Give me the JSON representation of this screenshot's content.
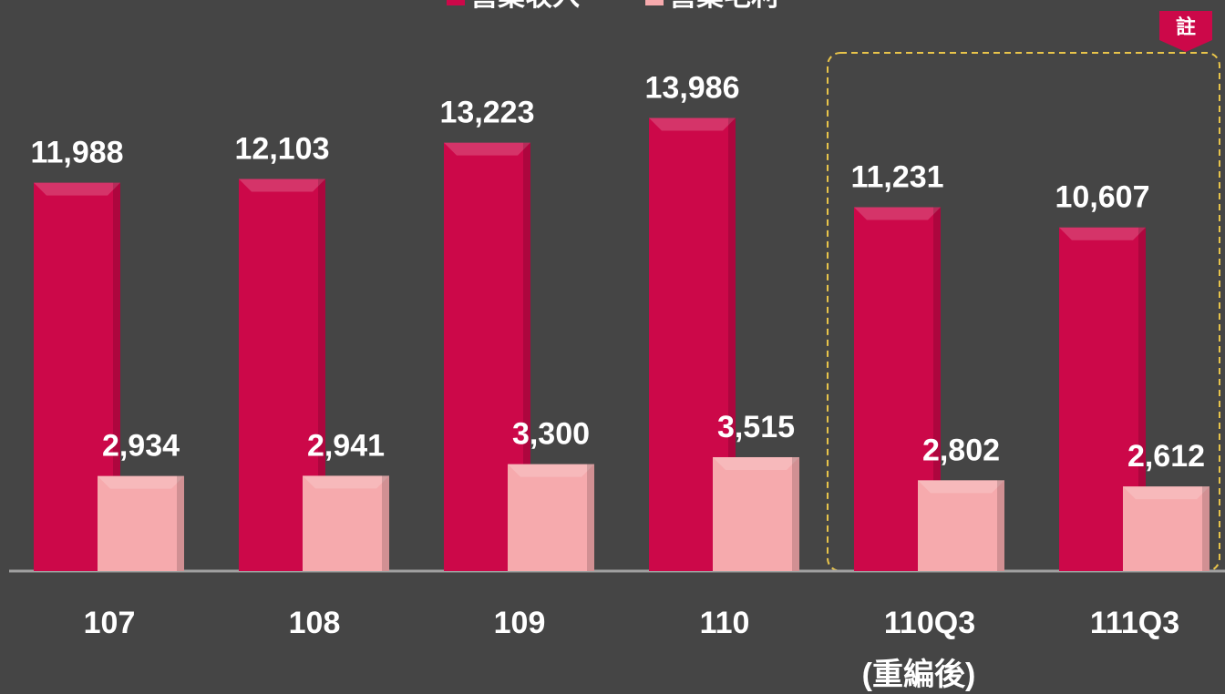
{
  "chart_data": {
    "type": "bar",
    "categories": [
      "107",
      "108",
      "109",
      "110",
      "110Q3",
      "111Q3"
    ],
    "category_note": {
      "index": 4,
      "text": "(重編後)"
    },
    "note_badge": "註",
    "series": [
      {
        "name": "營業收入",
        "color": "#cc0849",
        "values": [
          11988,
          12103,
          13223,
          13986,
          11231,
          10607
        ],
        "value_labels": [
          "11,988",
          "12,103",
          "13,223",
          "13,986",
          "11,231",
          "10,607"
        ]
      },
      {
        "name": "營業毛利",
        "color": "#f6aaad",
        "values": [
          2934,
          2941,
          3300,
          3515,
          2802,
          2612
        ],
        "value_labels": [
          "2,934",
          "2,941",
          "3,300",
          "3,515",
          "2,802",
          "2,612"
        ]
      }
    ],
    "ylim": [
      0,
      17600
    ],
    "grid": false
  }
}
